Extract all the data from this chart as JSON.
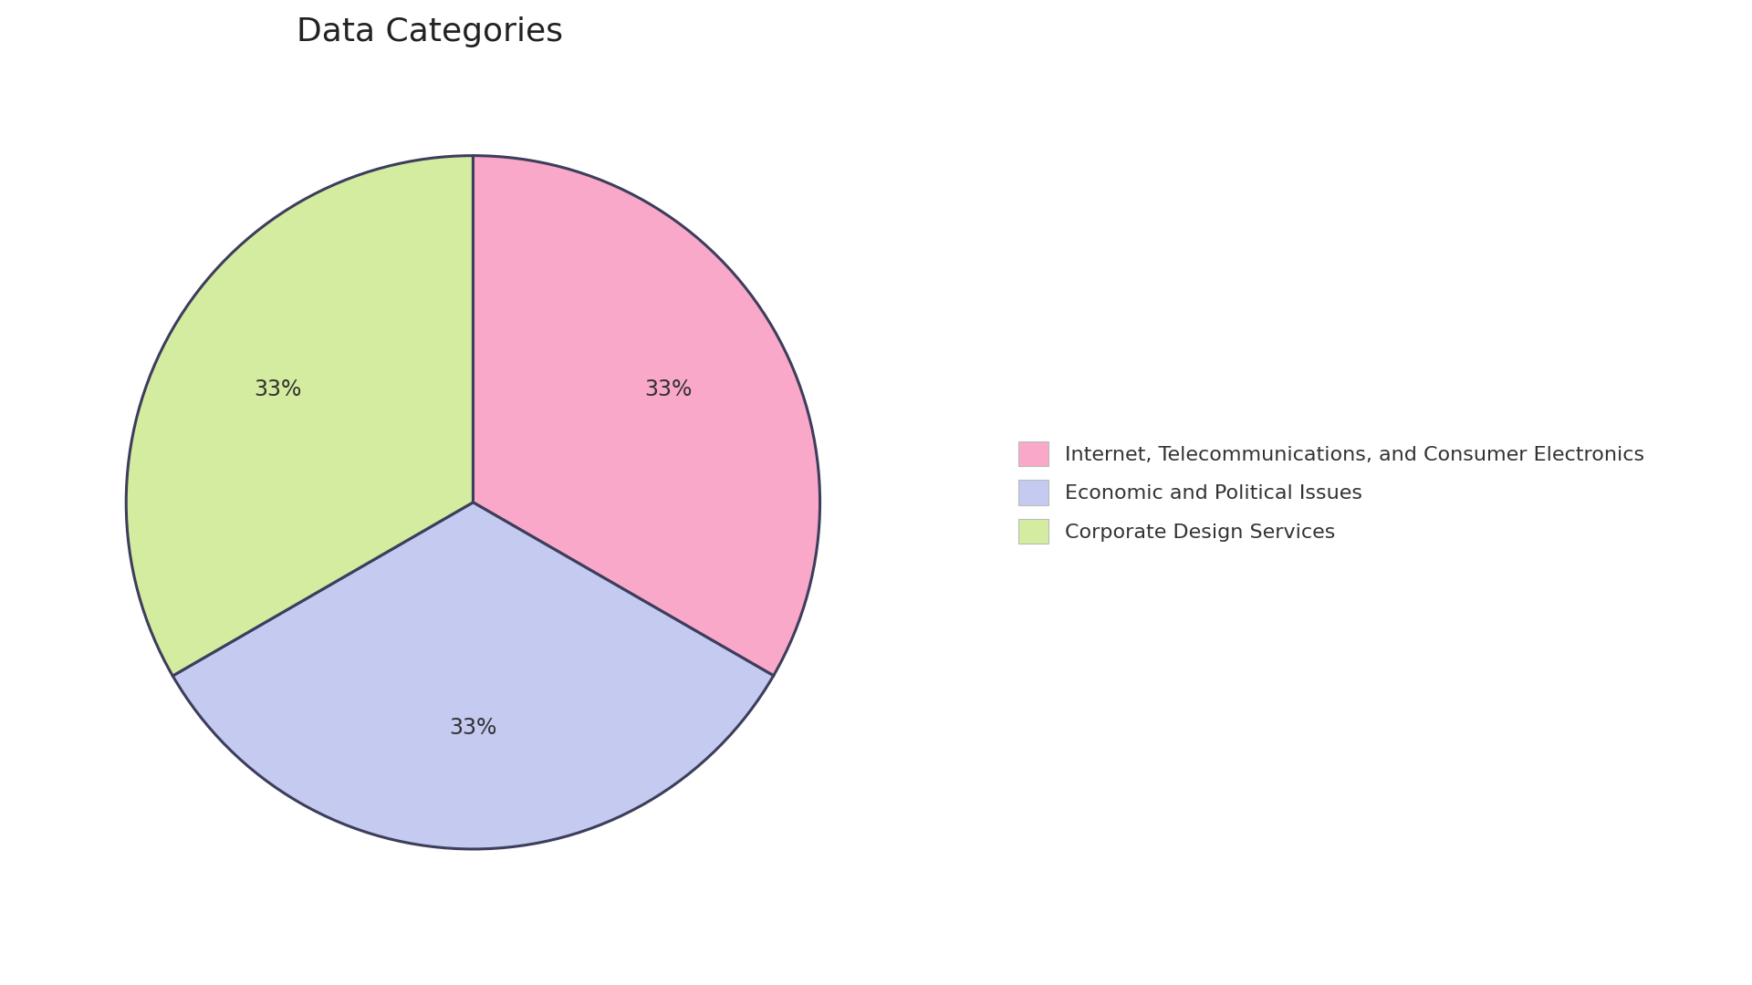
{
  "title": "Data Categories",
  "title_fontsize": 26,
  "labels": [
    "Internet, Telecommunications, and Consumer Electronics",
    "Economic and Political Issues",
    "Corporate Design Services"
  ],
  "values": [
    33.33,
    33.33,
    33.34
  ],
  "colors": [
    "#F9A8C9",
    "#C5CAF0",
    "#D4ECA0"
  ],
  "edge_color": "#3d3d5c",
  "edge_linewidth": 2.2,
  "pct_fontsize": 17,
  "legend_fontsize": 16,
  "background_color": "#FFFFFF",
  "startangle": 90
}
